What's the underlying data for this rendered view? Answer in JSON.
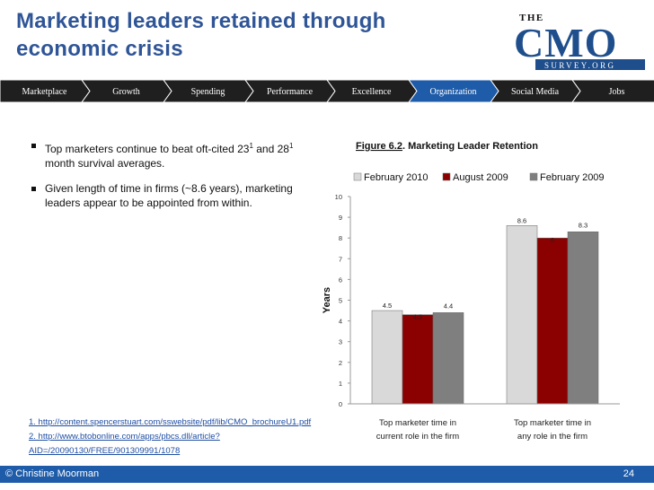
{
  "slide": {
    "title_line1": "Marketing leaders retained through",
    "title_line2": "economic crisis"
  },
  "logo": {
    "the": "THE",
    "cmo": "CMO",
    "survey": "SURVEY.ORG"
  },
  "nav": {
    "items": [
      "Marketplace",
      "Growth",
      "Spending",
      "Performance",
      "Excellence",
      "Organization",
      "Social Media",
      "Jobs"
    ],
    "active": 5
  },
  "bullets": [
    {
      "text": "Top marketers continue to beat oft-cited 23",
      "sup": "1",
      "text2": " and 28",
      "sup2": "1",
      "text3": " month survival averages."
    },
    {
      "text": "Given length of time in firms (~8.6 years), marketing leaders appear to be appointed from within."
    }
  ],
  "chart_data": {
    "type": "bar",
    "figure_label": "Figure 6.2",
    "title": "Marketing Leader Retention",
    "ylabel": "Years",
    "ylim": [
      0,
      10
    ],
    "yticks": [
      0,
      1,
      2,
      3,
      4,
      5,
      6,
      7,
      8,
      9,
      10
    ],
    "categories": [
      "Top marketer time in current role in the firm",
      "Top marketer time in any role in the firm"
    ],
    "category_lines": [
      [
        "Top marketer time in",
        "current role in the firm"
      ],
      [
        "Top marketer time in",
        "any role in the firm"
      ]
    ],
    "series": [
      {
        "name": "February 2010",
        "values": [
          4.5,
          8.6
        ],
        "color": "#d9d9d9"
      },
      {
        "name": "August 2009",
        "values": [
          4.3,
          8
        ],
        "color": "#8b0000"
      },
      {
        "name": "February 2009",
        "values": [
          4.4,
          8.3
        ],
        "color": "#7f7f7f"
      }
    ],
    "legend": "top",
    "grid": false
  },
  "refs": [
    "1. http://content.spencerstuart.com/sswebsite/pdf/lib/CMO_brochureU1.pdf",
    "2. http://www.btobonline.com/apps/pbcs.dll/article?AID=/20090130/FREE/901309991/1078"
  ],
  "footer": {
    "copyright": "© Christine Moorman",
    "page": "24"
  },
  "colors": {
    "title": "#2f5597",
    "nav_bg": "#1f1f1f",
    "nav_active": "#1e5ba8",
    "footer": "#1e5ba8",
    "logo_blue": "#1f4e8c"
  }
}
